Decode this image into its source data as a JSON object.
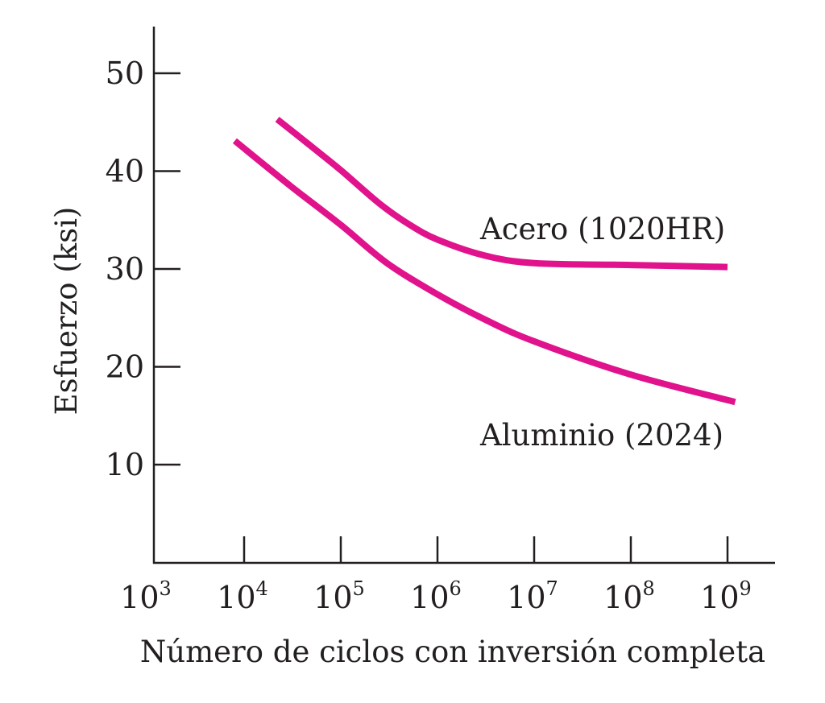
{
  "chart_data": {
    "type": "line",
    "title": "",
    "xlabel": "Número de ciclos con inversión completa",
    "ylabel": "Esfuerzo (ksi)",
    "x_scale": "log",
    "xlim": [
      1000,
      1500000000
    ],
    "ylim": [
      0,
      55
    ],
    "x_ticks": [
      {
        "base": "10",
        "exp": "3",
        "value": 1000,
        "show_mark": false
      },
      {
        "base": "10",
        "exp": "4",
        "value": 10000,
        "show_mark": true
      },
      {
        "base": "10",
        "exp": "5",
        "value": 100000,
        "show_mark": true
      },
      {
        "base": "10",
        "exp": "6",
        "value": 1000000,
        "show_mark": true
      },
      {
        "base": "10",
        "exp": "7",
        "value": 10000000,
        "show_mark": true
      },
      {
        "base": "10",
        "exp": "8",
        "value": 100000000,
        "show_mark": true
      },
      {
        "base": "10",
        "exp": "9",
        "value": 1000000000,
        "show_mark": true
      }
    ],
    "y_ticks": [
      {
        "label": "10",
        "value": 10
      },
      {
        "label": "20",
        "value": 20
      },
      {
        "label": "30",
        "value": 30
      },
      {
        "label": "40",
        "value": 40
      },
      {
        "label": "50",
        "value": 50
      }
    ],
    "grid": false,
    "line_color": "#e0138c",
    "series": [
      {
        "name": "Acero (1020HR)",
        "x": [
          22000,
          50000,
          100000,
          250000,
          500000,
          1000000,
          3000000,
          10000000,
          100000000,
          1000000000
        ],
        "y": [
          45.3,
          42.5,
          40.1,
          36.7,
          34.6,
          33.0,
          31.4,
          30.6,
          30.4,
          30.2
        ]
      },
      {
        "name": "Aluminio (2024)",
        "x": [
          8000,
          30000,
          100000,
          300000,
          1000000,
          3000000,
          10000000,
          100000000,
          1200000000
        ],
        "y": [
          43.1,
          38.5,
          34.5,
          30.6,
          27.4,
          24.9,
          22.6,
          19.2,
          16.4
        ]
      }
    ]
  }
}
